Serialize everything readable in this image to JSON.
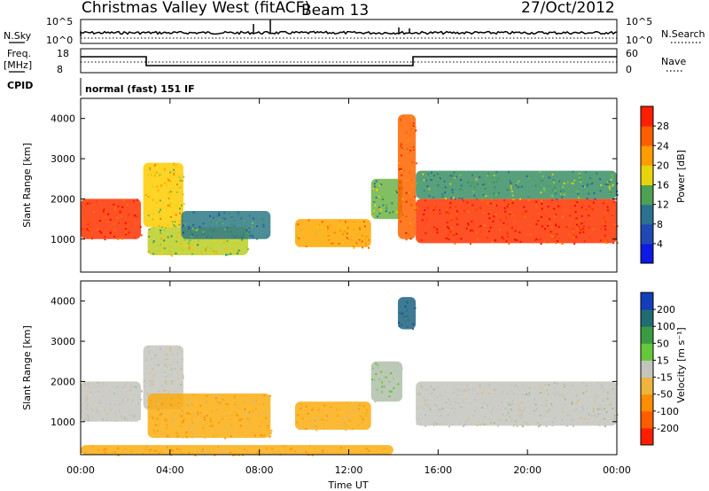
{
  "header": {
    "station": "Christmas Valley West (fitACF)",
    "beam": "Beam 13",
    "date": "27/Oct/2012"
  },
  "top_panels": {
    "nsky_label": "N.Sky",
    "nsky_ticks": [
      "10^5",
      "10^0"
    ],
    "nsearch_label": "N.Search",
    "nsearch_ticks": [
      "10^5",
      "10^0"
    ],
    "freq_label": "Freq.",
    "freq_unit": "[MHz]",
    "freq_ticks": [
      "18",
      "8"
    ],
    "nave_label": "Nave",
    "nave_ticks": [
      "60",
      "0"
    ],
    "cpid_label": "CPID",
    "cpid_value": "normal (fast) 151 IF"
  },
  "chart_data": [
    {
      "type": "heatmap",
      "title": "",
      "xlabel": "",
      "ylabel": "Slant Range [km]",
      "x_ticks": [
        "00:00",
        "04:00",
        "08:00",
        "12:00",
        "16:00",
        "20:00",
        "00:00"
      ],
      "xlim": [
        0,
        24
      ],
      "y_ticks": [
        1000,
        2000,
        3000,
        4000
      ],
      "ylim": [
        180,
        4500
      ],
      "colorbar": {
        "label": "Power [dB]",
        "ticks": [
          "4",
          "8",
          "12",
          "16",
          "20",
          "24",
          "28"
        ],
        "range": [
          0,
          30
        ]
      },
      "regions": [
        {
          "x": [
            0.0,
            2.7
          ],
          "y": [
            1000,
            2000
          ],
          "value": 27
        },
        {
          "x": [
            2.8,
            4.6
          ],
          "y": [
            1300,
            2900
          ],
          "value": 18
        },
        {
          "x": [
            3.0,
            7.5
          ],
          "y": [
            600,
            1300
          ],
          "value": 16
        },
        {
          "x": [
            4.5,
            8.5
          ],
          "y": [
            1000,
            1700
          ],
          "value": 10
        },
        {
          "x": [
            9.6,
            13.0
          ],
          "y": [
            800,
            1500
          ],
          "value": 20
        },
        {
          "x": [
            13.0,
            14.4
          ],
          "y": [
            1500,
            2500
          ],
          "value": 14
        },
        {
          "x": [
            14.2,
            15.0
          ],
          "y": [
            1000,
            4100
          ],
          "value": 24
        },
        {
          "x": [
            15.0,
            24.0
          ],
          "y": [
            900,
            2000
          ],
          "value": 27
        },
        {
          "x": [
            15.0,
            24.0
          ],
          "y": [
            2000,
            2700
          ],
          "value": 12
        }
      ]
    },
    {
      "type": "heatmap",
      "title": "",
      "xlabel": "Time UT",
      "ylabel": "Slant Range [km]",
      "x_ticks": [
        "00:00",
        "04:00",
        "08:00",
        "12:00",
        "16:00",
        "20:00",
        "00:00"
      ],
      "xlim": [
        0,
        24
      ],
      "y_ticks": [
        1000,
        2000,
        3000,
        4000
      ],
      "ylim": [
        180,
        4500
      ],
      "colorbar": {
        "label": "Velocity [m s⁻¹]",
        "ticks": [
          "200",
          "100",
          "50",
          "15",
          "-15",
          "-50",
          "-100",
          "-200"
        ],
        "range": [
          -250,
          250
        ]
      },
      "regions": [
        {
          "x": [
            0.0,
            2.7
          ],
          "y": [
            1000,
            2000
          ],
          "value": 0
        },
        {
          "x": [
            2.8,
            4.6
          ],
          "y": [
            1300,
            2900
          ],
          "value": -5
        },
        {
          "x": [
            3.0,
            8.5
          ],
          "y": [
            600,
            1700
          ],
          "value": -70
        },
        {
          "x": [
            9.6,
            13.0
          ],
          "y": [
            800,
            1500
          ],
          "value": -70
        },
        {
          "x": [
            13.0,
            14.4
          ],
          "y": [
            1500,
            2500
          ],
          "value": 30
        },
        {
          "x": [
            14.2,
            15.0
          ],
          "y": [
            3300,
            4100
          ],
          "value": 180
        },
        {
          "x": [
            15.0,
            24.0
          ],
          "y": [
            900,
            2000
          ],
          "value": 0
        },
        {
          "x": [
            0.0,
            14.0
          ],
          "y": [
            180,
            420
          ],
          "value": -70
        }
      ]
    }
  ]
}
